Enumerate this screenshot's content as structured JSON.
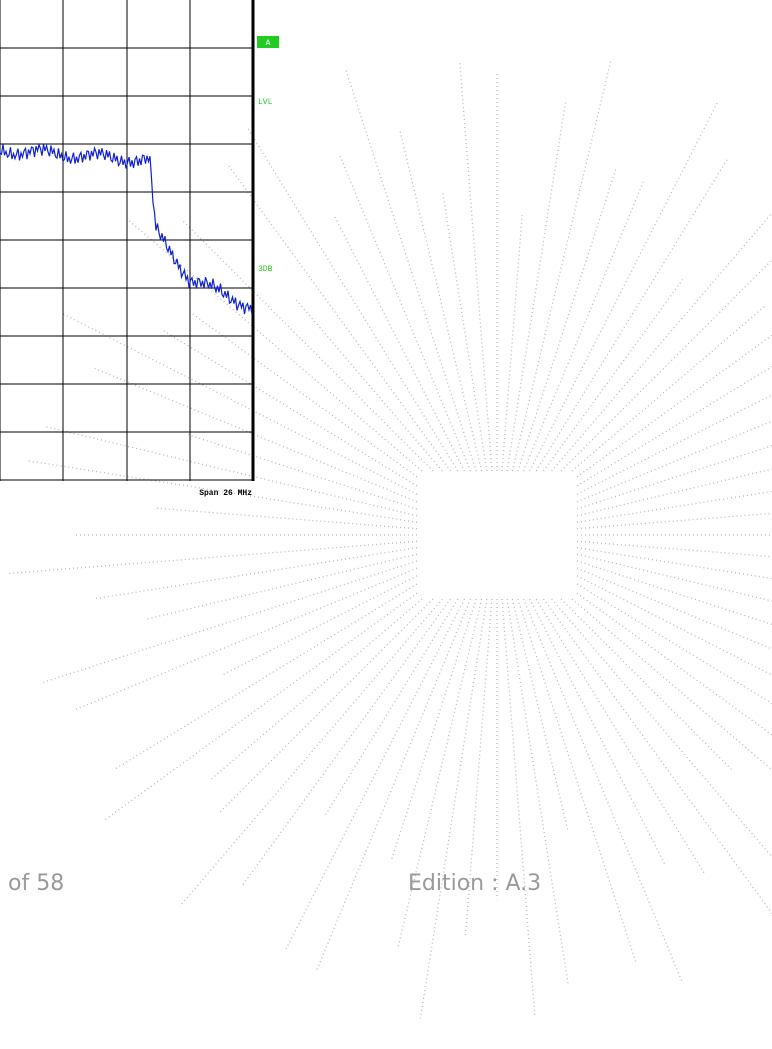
{
  "analyzer": {
    "marker_box": "A",
    "level_label": "LVL",
    "db_label": "3DB",
    "span": "Span 26 MHz"
  },
  "footer": {
    "page": "of 58",
    "edition": "Edition : A.3"
  }
}
